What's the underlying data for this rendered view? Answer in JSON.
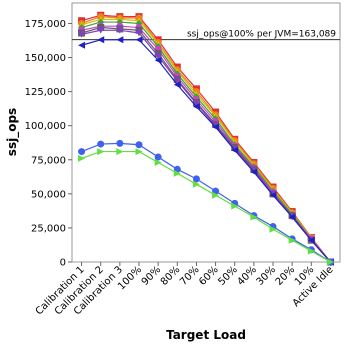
{
  "chart_data": {
    "type": "line",
    "xlabel": "Target Load",
    "ylabel": "ssj_ops",
    "categories": [
      "Calibration 1",
      "Calibration 2",
      "Calibration 3",
      "100%",
      "90%",
      "80%",
      "70%",
      "60%",
      "50%",
      "40%",
      "30%",
      "20%",
      "10%",
      "Active Idle"
    ],
    "ylim": [
      0,
      190000
    ],
    "yticks": [
      0,
      {
        "value": 25000,
        "label": "25,000"
      },
      {
        "value": 50000,
        "label": "50,000"
      },
      {
        "value": 75000,
        "label": "75,000"
      },
      {
        "value": 100000,
        "label": "100,000"
      },
      {
        "value": 125000,
        "label": "125,000"
      },
      {
        "value": 150000,
        "label": "150,000"
      },
      {
        "value": 175000,
        "label": "175,000"
      }
    ],
    "reference_line": {
      "value": 163089,
      "label": "ssj_ops@100% per JVM=163,089"
    },
    "series": [
      {
        "color": "#e03030",
        "marker": "square",
        "values": [
          177000,
          181000,
          180000,
          180000,
          163000,
          143000,
          127000,
          110000,
          90000,
          73000,
          55000,
          37000,
          18000,
          0
        ]
      },
      {
        "color": "#f08020",
        "marker": "circle",
        "values": [
          175000,
          180000,
          179000,
          179000,
          161000,
          141000,
          125000,
          108000,
          89000,
          72000,
          54000,
          36000,
          18000,
          0
        ]
      },
      {
        "color": "#c8c800",
        "marker": "triangle-up",
        "values": [
          174000,
          178000,
          178000,
          177000,
          160000,
          140000,
          123000,
          107000,
          88000,
          71000,
          53000,
          36000,
          17000,
          0
        ]
      },
      {
        "color": "#40a040",
        "marker": "diamond",
        "values": [
          172000,
          176000,
          176000,
          175000,
          158000,
          138000,
          121000,
          105000,
          86000,
          70000,
          52000,
          35000,
          17000,
          0
        ]
      },
      {
        "color": "#d040d0",
        "marker": "circle",
        "values": [
          170000,
          173000,
          173000,
          172000,
          156000,
          136000,
          119000,
          103000,
          85000,
          69000,
          51000,
          34000,
          17000,
          0
        ]
      },
      {
        "color": "#606060",
        "marker": "square",
        "values": [
          168000,
          172000,
          171000,
          170000,
          153000,
          134000,
          117000,
          101000,
          84000,
          68000,
          50000,
          34000,
          16000,
          0
        ]
      },
      {
        "color": "#8040c0",
        "marker": "triangle-down",
        "values": [
          167000,
          170000,
          170000,
          168000,
          151000,
          133000,
          116000,
          100000,
          83000,
          67000,
          50000,
          33000,
          16000,
          0
        ]
      },
      {
        "color": "#2020c0",
        "marker": "triangle-left",
        "values": [
          159000,
          163000,
          163000,
          163000,
          148000,
          130000,
          114000,
          99000,
          82000,
          66000,
          49000,
          33000,
          16000,
          0
        ]
      },
      {
        "color": "#4060f0",
        "marker": "circle",
        "values": [
          81000,
          86500,
          87000,
          86000,
          77000,
          68000,
          61000,
          52000,
          43000,
          34000,
          26000,
          17000,
          9000,
          0
        ]
      },
      {
        "color": "#60e040",
        "marker": "triangle-right",
        "values": [
          76000,
          81000,
          81000,
          81000,
          73000,
          65000,
          57000,
          49000,
          41000,
          33000,
          24000,
          16000,
          8000,
          0
        ]
      }
    ]
  }
}
